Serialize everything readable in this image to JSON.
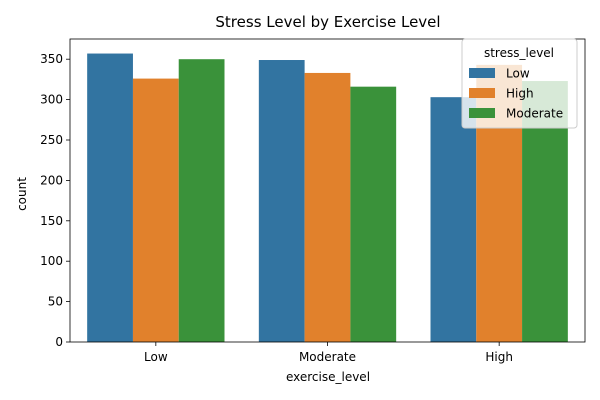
{
  "chart_data": {
    "type": "bar",
    "title": "Stress Level by Exercise Level",
    "xlabel": "exercise_level",
    "ylabel": "count",
    "categories": [
      "Low",
      "Moderate",
      "High"
    ],
    "ylim": [
      0,
      375
    ],
    "yticks": [
      0,
      50,
      100,
      150,
      200,
      250,
      300,
      350
    ],
    "grid": false,
    "legend": {
      "title": "stress_level",
      "placement": "top-right"
    },
    "series": [
      {
        "name": "Low",
        "color": "#3274a1",
        "values": [
          357,
          349,
          303
        ]
      },
      {
        "name": "High",
        "color": "#e1812c",
        "values": [
          326,
          333,
          343
        ]
      },
      {
        "name": "Moderate",
        "color": "#3a923a",
        "values": [
          350,
          316,
          323
        ]
      }
    ]
  }
}
